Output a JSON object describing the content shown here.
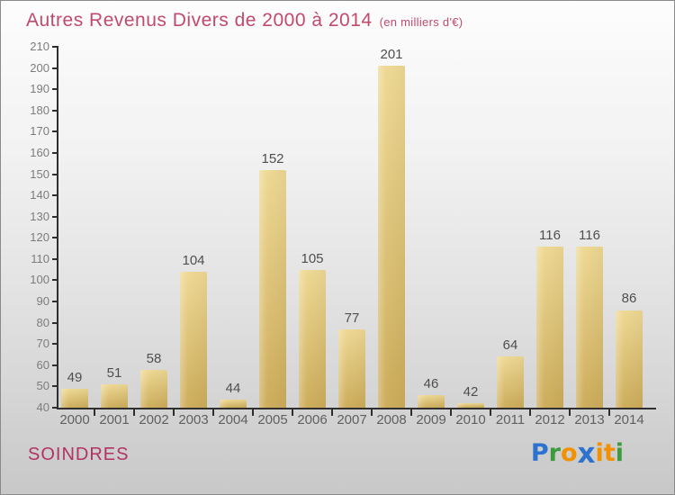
{
  "header": {
    "title": "Autres Revenus Divers de 2000 à 2014",
    "subtitle": "(en milliers d'€)"
  },
  "chart_data": {
    "type": "bar",
    "title": "Autres Revenus Divers de 2000 à 2014",
    "subtitle": "(en milliers d'€)",
    "categories": [
      "2000",
      "2001",
      "2002",
      "2003",
      "2004",
      "2005",
      "2006",
      "2007",
      "2008",
      "2009",
      "2010",
      "2011",
      "2012",
      "2013",
      "2014"
    ],
    "values": [
      49,
      51,
      58,
      104,
      44,
      152,
      105,
      77,
      201,
      46,
      42,
      64,
      116,
      116,
      86
    ],
    "xlabel": "",
    "ylabel": "",
    "ylim": [
      40,
      210
    ],
    "ytick_step": 10,
    "grid": false,
    "legend": "none",
    "value_labels": true,
    "bar_color_top": "#eed994",
    "bar_color_bottom": "#cdad5c"
  },
  "footer": {
    "commune": "SOINDRES",
    "logo": {
      "text": "Proxiti",
      "letters": [
        {
          "char": "P",
          "color": "#2e72cf",
          "big": false
        },
        {
          "char": "r",
          "color": "#3c9b3c",
          "big": false
        },
        {
          "char": "o",
          "color": "#f29100",
          "big": false
        },
        {
          "char": "x",
          "color": "#2e72cf",
          "big": true
        },
        {
          "char": "i",
          "color": "#f29100",
          "big": false
        },
        {
          "char": "t",
          "color": "#f29100",
          "big": false
        },
        {
          "char": "i",
          "color": "#3c9b3c",
          "big": false
        }
      ]
    }
  },
  "colors": {
    "title": "#c14a6c",
    "commune": "#b23264",
    "axis": "#2f2f2f",
    "y_tick_label": "#7c7c7c",
    "x_tick_label": "#606060",
    "value_label": "#4f4f4f"
  }
}
